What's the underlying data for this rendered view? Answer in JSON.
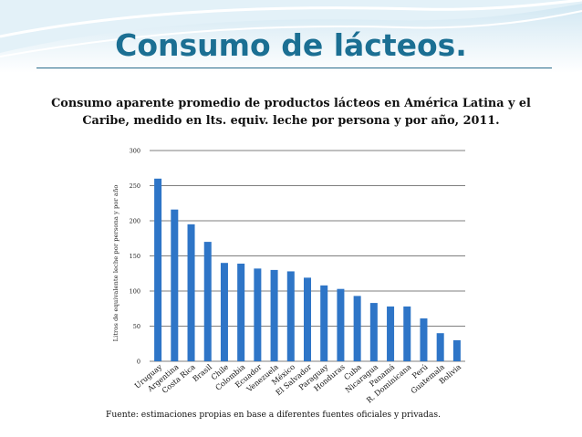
{
  "slide": {
    "title": "Consumo de lácteos.",
    "subtitle": "Consumo aparente promedio de productos lácteos en América Latina y el Caribe, medido en lts. equiv. leche por persona y por año, 2011.",
    "source": "Fuente: estimaciones propias en base a diferentes fuentes oficiales y privadas."
  },
  "colors": {
    "title": "#1b6f93",
    "bar": "#2e75c7",
    "grid": "#555555"
  },
  "chart_data": {
    "type": "bar",
    "title": "",
    "xlabel": "",
    "ylabel": "Litros de equivalente leche por persona y por año",
    "ylim": [
      0,
      300
    ],
    "yticks": [
      0,
      50,
      100,
      150,
      200,
      250,
      300
    ],
    "grid": true,
    "categories": [
      "Uruguay",
      "Argentina",
      "Costa Rica",
      "Brasil",
      "Chile",
      "Colombia",
      "Ecuador",
      "Venezuela",
      "México",
      "El Salvador",
      "Paraguay",
      "Honduras",
      "Cuba",
      "Nicaragua",
      "Panamá",
      "R. Dominicana",
      "Perú",
      "Guatemala",
      "Bolivia"
    ],
    "values": [
      260,
      216,
      195,
      170,
      140,
      139,
      132,
      130,
      128,
      119,
      108,
      103,
      93,
      83,
      78,
      78,
      61,
      40,
      30
    ]
  }
}
